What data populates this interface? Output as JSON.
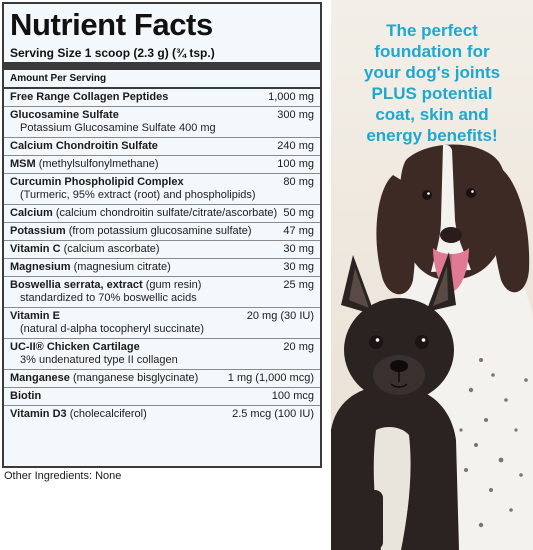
{
  "facts": {
    "title": "Nutrient Facts",
    "serving_size": "Serving Size 1 scoop (2.3 g) (¾ tsp.)",
    "amount_per_serving": "Amount Per Serving",
    "rows": [
      {
        "name": "Free Range Collagen Peptides",
        "detail": "",
        "sub": "",
        "amount": "1,000 mg"
      },
      {
        "name": "Glucosamine Sulfate",
        "detail": "",
        "sub": "Potassium Glucosamine Sulfate  400 mg",
        "amount": "300 mg"
      },
      {
        "name": "Calcium Chondroitin Sulfate",
        "detail": "",
        "sub": "",
        "amount": "240 mg"
      },
      {
        "name": "MSM",
        "detail": " (methylsulfonylmethane)",
        "sub": "",
        "amount": "100 mg"
      },
      {
        "name": "Curcumin Phospholipid Complex",
        "detail": "",
        "sub": "(Turmeric, 95% extract (root) and phospholipids)",
        "amount": "80 mg"
      },
      {
        "name": "Calcium",
        "detail": " (calcium chondroitin sulfate/citrate/ascorbate)",
        "sub": "",
        "amount": "50 mg"
      },
      {
        "name": "Potassium",
        "detail": " (from potassium glucosamine sulfate)",
        "sub": "",
        "amount": "47 mg"
      },
      {
        "name": "Vitamin C",
        "detail": " (calcium ascorbate)",
        "sub": "",
        "amount": "30 mg"
      },
      {
        "name": "Magnesium",
        "detail": " (magnesium citrate)",
        "sub": "",
        "amount": "30 mg"
      },
      {
        "name": "Boswellia serrata, extract",
        "detail": " (gum resin)",
        "sub": "standardized to 70% boswellic acids",
        "amount": "25 mg"
      },
      {
        "name": "Vitamin E",
        "detail": "",
        "sub": "(natural d-alpha tocopheryl succinate)",
        "amount": "20 mg (30 IU)"
      },
      {
        "name": "UC-II® Chicken Cartilage",
        "detail": "",
        "sub": "3% undenatured type II collagen",
        "amount": "20 mg"
      },
      {
        "name": "Manganese",
        "detail": " (manganese bisglycinate)",
        "sub": "",
        "amount": "1 mg (1,000 mcg)"
      },
      {
        "name": "Biotin",
        "detail": "",
        "sub": "",
        "amount": "100 mcg"
      },
      {
        "name": "Vitamin D3",
        "detail": " (cholecalciferol)",
        "sub": "",
        "amount": "2.5 mcg (100 IU)"
      }
    ]
  },
  "other_ingredients": "Other Ingredients: None",
  "promo_text": "The perfect\nfoundation for\nyour dog's joints\nPLUS potential\ncoat, skin and\nenergy benefits!",
  "colors": {
    "promo": "#1ea8cf",
    "panel_bg": "#f3f8fd",
    "border": "#3a3a3a"
  }
}
